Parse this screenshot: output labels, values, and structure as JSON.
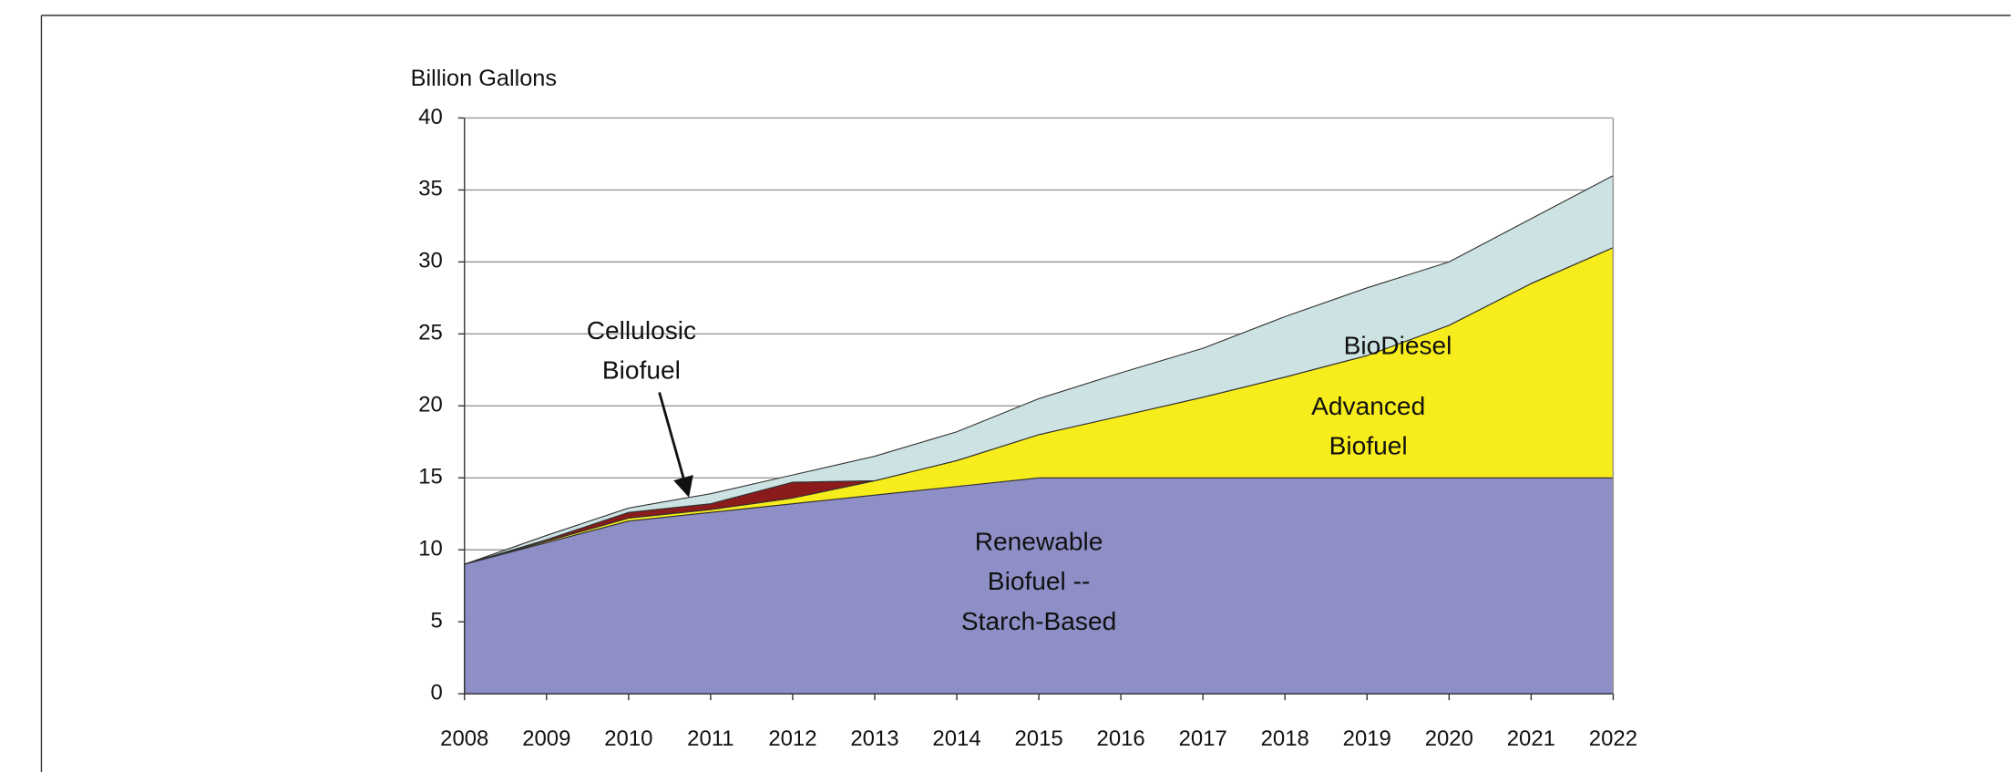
{
  "chart_data": {
    "type": "stacked-area",
    "y_label": "Billion Gallons",
    "x": [
      2008,
      2009,
      2010,
      2011,
      2012,
      2013,
      2014,
      2015,
      2016,
      2017,
      2018,
      2019,
      2020,
      2021,
      2022
    ],
    "xlim": [
      2008,
      2022
    ],
    "xticks": [
      2008,
      2009,
      2010,
      2011,
      2012,
      2013,
      2014,
      2015,
      2016,
      2017,
      2018,
      2019,
      2020,
      2021,
      2022
    ],
    "ylim": [
      0,
      40
    ],
    "yticks": [
      0,
      5,
      10,
      15,
      20,
      25,
      30,
      35,
      40
    ],
    "grid": true,
    "series": [
      {
        "name": "Renewable\nBiofuel --\nStarch-Based",
        "color": "#8f8fc8",
        "values": [
          9,
          10.5,
          12,
          12.6,
          13.2,
          13.8,
          14.4,
          15,
          15,
          15,
          15,
          15,
          15,
          15,
          15
        ]
      },
      {
        "name": "Advanced\nBiofuel",
        "color": "#f7ec1c",
        "values": [
          0,
          0.1,
          0.2,
          0.2,
          0.4,
          1.0,
          1.8,
          3,
          4.3,
          5.6,
          7,
          8.5,
          10.6,
          13.5,
          16
        ]
      },
      {
        "name": "Cellulosic\nBiofuel",
        "color": "#8b1a1a",
        "values": [
          0,
          0.1,
          0.4,
          0.4,
          1.1,
          0,
          0,
          0,
          0,
          0,
          0,
          0,
          0,
          0,
          0
        ]
      },
      {
        "name": "BioDiesel",
        "color": "#cde3e3",
        "values": [
          0,
          0.3,
          0.3,
          0.7,
          0.5,
          1.7,
          2.0,
          2.5,
          3.0,
          3.4,
          4.2,
          4.7,
          4.4,
          4.5,
          5
        ]
      }
    ]
  }
}
